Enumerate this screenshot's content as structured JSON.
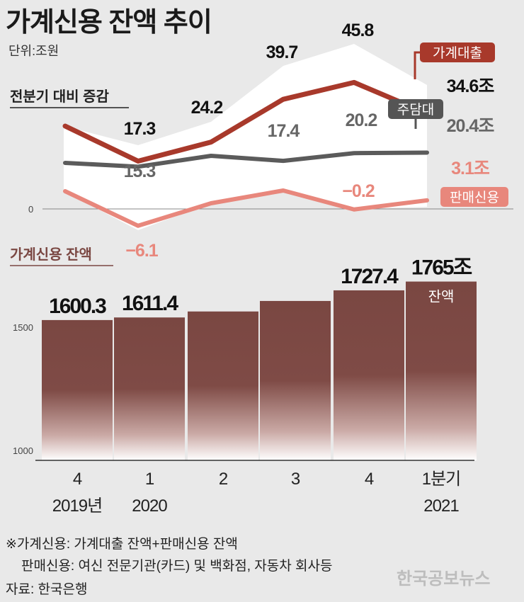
{
  "title": "가계신용 잔액 추이",
  "unit": "단위:조원",
  "colors": {
    "background": "#e9e9e9",
    "household_loans": "#a8392b",
    "mortgage": "#5b5b5b",
    "sales_credit": "#e8877c",
    "bar_top": "#7a4742",
    "bar_bottom": "#ffffff"
  },
  "chart_data": [
    {
      "type": "line",
      "subtitle": "전분기 대비 증감",
      "categories": [
        "4",
        "1",
        "2",
        "3",
        "4",
        "1분기"
      ],
      "series": [
        {
          "name": "가계대출",
          "values": [
            null,
            17.3,
            24.2,
            39.7,
            45.8,
            34.6
          ],
          "labels": [
            "",
            "17.3",
            "24.2",
            "39.7",
            "45.8",
            "34.6조"
          ]
        },
        {
          "name": "주담대",
          "values": [
            null,
            15.3,
            null,
            17.4,
            20.2,
            20.4
          ],
          "labels": [
            "",
            "15.3",
            "",
            "17.4",
            "20.2",
            "20.4조"
          ]
        },
        {
          "name": "판매신용",
          "values": [
            null,
            -6.1,
            null,
            null,
            -0.2,
            3.1
          ],
          "labels": [
            "",
            "−6.1",
            "",
            "",
            "−0.2",
            "3.1조"
          ]
        }
      ],
      "zero_label": "0",
      "grid": false,
      "legend": "labels at line ends"
    },
    {
      "type": "bar",
      "subtitle": "가계신용 잔액",
      "categories": [
        "4",
        "1",
        "2",
        "3",
        "4",
        "1분기"
      ],
      "year_labels": [
        "2019년",
        "2020",
        "",
        "",
        "",
        "2021"
      ],
      "values": [
        1600.3,
        1611.4,
        1637,
        1682,
        1727.4,
        1765
      ],
      "value_labels": [
        "1600.3",
        "1611.4",
        "",
        "",
        "1727.4",
        "1765조"
      ],
      "inner_label": "잔액",
      "ylim": [
        1000,
        1800
      ],
      "yticks": [
        "1500",
        "1000"
      ]
    }
  ],
  "notes": {
    "line1": "※가계신용:  가계대출 잔액+판매신용 잔액",
    "line2": "판매신용:  여신 전문기관(카드) 및 백화점, 자동차 회사등",
    "source": "자료:  한국은행"
  },
  "watermark": "한국공보뉴스"
}
